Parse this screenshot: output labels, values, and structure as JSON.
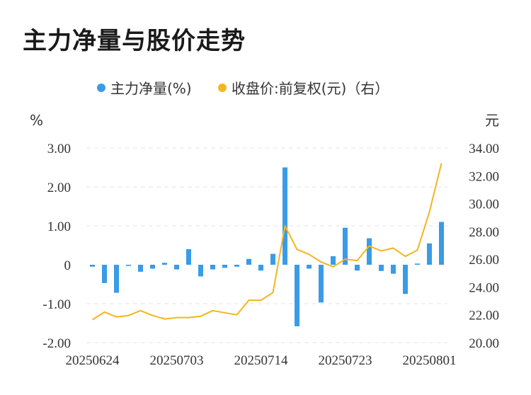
{
  "title": "主力净量与股价走势",
  "chart_data": {
    "type": "bar+line",
    "title": "主力净量与股价走势",
    "y_left_unit": "%",
    "y_right_unit": "元",
    "y_left_ticks": [
      "3.00",
      "2.00",
      "1.00",
      "0",
      "-1.00",
      "-2.00"
    ],
    "y_right_ticks": [
      "34.00",
      "32.00",
      "30.00",
      "28.00",
      "26.00",
      "24.00",
      "22.00",
      "20.00"
    ],
    "y_left_range": [
      -2,
      3
    ],
    "y_right_range": [
      20,
      34
    ],
    "x_tick_labels": [
      "20250624",
      "20250703",
      "20250714",
      "20250723",
      "20250801"
    ],
    "x_tick_indices": [
      0,
      7,
      14,
      21,
      28
    ],
    "legend_position": "top-center",
    "grid": true,
    "series": [
      {
        "name": "主力净量(%)",
        "type": "bar",
        "axis": "left",
        "color": "#3a9be6",
        "values": [
          -0.05,
          -0.47,
          -0.72,
          -0.03,
          -0.18,
          -0.1,
          0.05,
          -0.12,
          0.4,
          -0.3,
          -0.12,
          -0.08,
          -0.05,
          0.15,
          -0.15,
          0.28,
          2.5,
          -1.58,
          -0.1,
          -0.97,
          0.22,
          0.95,
          -0.15,
          0.68,
          -0.16,
          -0.23,
          -0.75,
          0.03,
          0.55,
          1.1
        ]
      },
      {
        "name": "收盘价:前复权(元)（右）",
        "type": "line",
        "axis": "right",
        "color": "#f5b51d",
        "values": [
          21.65,
          22.2,
          21.85,
          21.95,
          22.3,
          21.95,
          21.7,
          21.8,
          21.8,
          21.9,
          22.3,
          22.15,
          22.0,
          23.05,
          23.05,
          23.6,
          28.4,
          26.7,
          26.35,
          25.8,
          25.45,
          26.0,
          25.9,
          26.95,
          26.6,
          26.8,
          26.2,
          26.65,
          29.4,
          32.9
        ]
      }
    ]
  }
}
